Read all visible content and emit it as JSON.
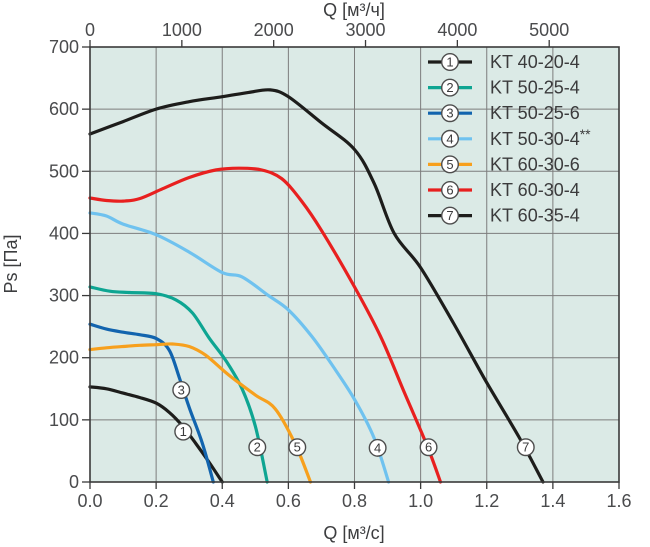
{
  "chart_data": {
    "type": "line",
    "title": "",
    "plot": {
      "bg_color": "#dbeae6",
      "grid_color": "#7d7d7d",
      "frame_color": "#3a3a3a",
      "tick_color": "#3a3a3a"
    },
    "axes": {
      "bottom": {
        "title": "Q [м³/с]",
        "min": 0,
        "max": 1.6,
        "ticks": [
          0,
          0.2,
          0.4,
          0.6,
          0.8,
          1.0,
          1.2,
          1.4,
          1.6
        ],
        "tick_labels": [
          "0.0",
          "0.2",
          "0.4",
          "0.6",
          "0.8",
          "1.0",
          "1.2",
          "1.4",
          "1.6"
        ]
      },
      "top": {
        "title": "Q [м³/ч]",
        "unit_per_bottom": 3600,
        "ticks": [
          0,
          1000,
          2000,
          3000,
          4000,
          5000
        ],
        "tick_labels": [
          "0",
          "1000",
          "2000",
          "3000",
          "4000",
          "5000"
        ]
      },
      "left": {
        "title": "Ps [Па]",
        "min": 0,
        "max": 700,
        "ticks": [
          0,
          100,
          200,
          300,
          400,
          500,
          600,
          700
        ],
        "tick_labels": [
          "0",
          "100",
          "200",
          "300",
          "400",
          "500",
          "600",
          "700"
        ]
      }
    },
    "grid": {
      "x_step": 0.2,
      "y_step": 100,
      "grid_on": true
    },
    "legend": {
      "position": "top-right-inside-plot"
    },
    "series": [
      {
        "id": "1",
        "label": "KT 40-20-4",
        "suffix": "",
        "color": "#1d1d1b",
        "badge_at": [
          0.282,
          81
        ],
        "points": [
          [
            0,
            153
          ],
          [
            0.05,
            150
          ],
          [
            0.1,
            143
          ],
          [
            0.15,
            136
          ],
          [
            0.2,
            127
          ],
          [
            0.24,
            112
          ],
          [
            0.28,
            90
          ],
          [
            0.32,
            62
          ],
          [
            0.36,
            32
          ],
          [
            0.4,
            0
          ]
        ]
      },
      {
        "id": "2",
        "label": "KT 50-25-4",
        "suffix": "",
        "color": "#0ea592",
        "badge_at": [
          0.506,
          56
        ],
        "points": [
          [
            0,
            314
          ],
          [
            0.06,
            307
          ],
          [
            0.12,
            305
          ],
          [
            0.2,
            303
          ],
          [
            0.26,
            293
          ],
          [
            0.31,
            272
          ],
          [
            0.36,
            232
          ],
          [
            0.41,
            196
          ],
          [
            0.46,
            150
          ],
          [
            0.5,
            90
          ],
          [
            0.536,
            0
          ]
        ]
      },
      {
        "id": "3",
        "label": "KT 50-25-6",
        "suffix": "",
        "color": "#1264ae",
        "badge_at": [
          0.276,
          148
        ],
        "points": [
          [
            0,
            254
          ],
          [
            0.05,
            246
          ],
          [
            0.1,
            241
          ],
          [
            0.15,
            237
          ],
          [
            0.2,
            231
          ],
          [
            0.24,
            212
          ],
          [
            0.27,
            168
          ],
          [
            0.3,
            120
          ],
          [
            0.34,
            62
          ],
          [
            0.373,
            0
          ]
        ]
      },
      {
        "id": "4",
        "label": "KT 50-30-4",
        "suffix": "**",
        "color": "#6fc2ef",
        "badge_at": [
          0.87,
          55
        ],
        "points": [
          [
            0,
            433
          ],
          [
            0.05,
            428
          ],
          [
            0.1,
            415
          ],
          [
            0.2,
            398
          ],
          [
            0.3,
            370
          ],
          [
            0.4,
            337
          ],
          [
            0.46,
            330
          ],
          [
            0.54,
            300
          ],
          [
            0.6,
            277
          ],
          [
            0.67,
            235
          ],
          [
            0.73,
            190
          ],
          [
            0.8,
            133
          ],
          [
            0.86,
            70
          ],
          [
            0.903,
            0
          ]
        ]
      },
      {
        "id": "5",
        "label": "KT 60-30-6",
        "suffix": "",
        "color": "#f7a01d",
        "badge_at": [
          0.627,
          56
        ],
        "points": [
          [
            0,
            213
          ],
          [
            0.05,
            216
          ],
          [
            0.1,
            218
          ],
          [
            0.15,
            220
          ],
          [
            0.2,
            221
          ],
          [
            0.25,
            222
          ],
          [
            0.3,
            218
          ],
          [
            0.35,
            204
          ],
          [
            0.42,
            172
          ],
          [
            0.5,
            140
          ],
          [
            0.56,
            118
          ],
          [
            0.62,
            62
          ],
          [
            0.667,
            0
          ]
        ]
      },
      {
        "id": "6",
        "label": "KT 60-30-4",
        "suffix": "",
        "color": "#e8201f",
        "badge_at": [
          1.024,
          56
        ],
        "points": [
          [
            0,
            457
          ],
          [
            0.05,
            453
          ],
          [
            0.1,
            452
          ],
          [
            0.15,
            456
          ],
          [
            0.22,
            472
          ],
          [
            0.3,
            490
          ],
          [
            0.38,
            502
          ],
          [
            0.45,
            505
          ],
          [
            0.52,
            502
          ],
          [
            0.58,
            488
          ],
          [
            0.64,
            452
          ],
          [
            0.7,
            405
          ],
          [
            0.8,
            314
          ],
          [
            0.88,
            233
          ],
          [
            0.95,
            145
          ],
          [
            1.02,
            58
          ],
          [
            1.06,
            0
          ]
        ]
      },
      {
        "id": "7",
        "label": "KT 60-35-4",
        "suffix": "",
        "color": "#1d1d1b",
        "badge_at": [
          1.318,
          56
        ],
        "points": [
          [
            0,
            560
          ],
          [
            0.1,
            580
          ],
          [
            0.2,
            600
          ],
          [
            0.3,
            612
          ],
          [
            0.4,
            620
          ],
          [
            0.48,
            627
          ],
          [
            0.545,
            631
          ],
          [
            0.6,
            620
          ],
          [
            0.7,
            578
          ],
          [
            0.8,
            535
          ],
          [
            0.86,
            480
          ],
          [
            0.92,
            400
          ],
          [
            1.0,
            345
          ],
          [
            1.1,
            255
          ],
          [
            1.2,
            160
          ],
          [
            1.3,
            70
          ],
          [
            1.37,
            0
          ]
        ]
      }
    ]
  }
}
